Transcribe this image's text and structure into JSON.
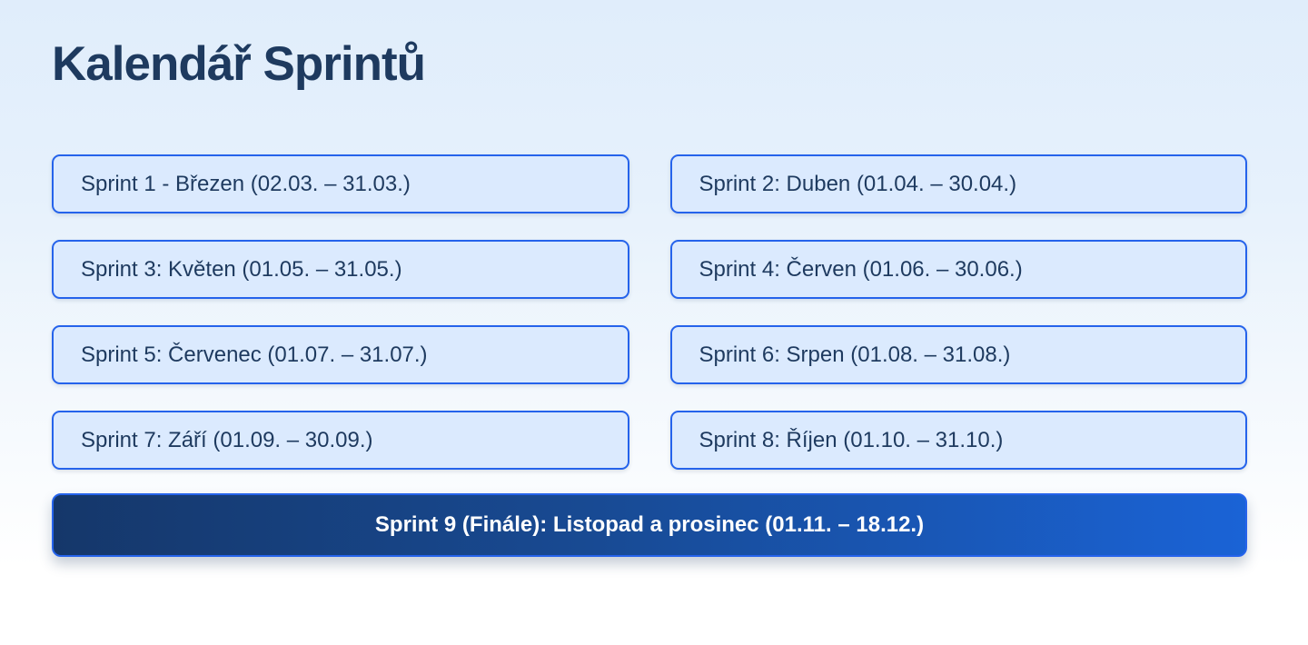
{
  "page": {
    "title": "Kalendář Sprintů"
  },
  "sprints": [
    {
      "label": "Sprint 1 - Březen (02.03. – 31.03.)"
    },
    {
      "label": "Sprint 2: Duben (01.04. – 30.04.)"
    },
    {
      "label": "Sprint 3: Květen (01.05. – 31.05.)"
    },
    {
      "label": "Sprint 4: Červen (01.06. – 30.06.)"
    },
    {
      "label": "Sprint 5: Červenec (01.07. – 31.07.)"
    },
    {
      "label": "Sprint 6: Srpen (01.08. – 31.08.)"
    },
    {
      "label": "Sprint 7: Září (01.09. – 30.09.)"
    },
    {
      "label": "Sprint 8: Říjen (01.10. – 31.10.)"
    }
  ],
  "final_sprint": {
    "label": "Sprint 9 (Finále): Listopad a prosinec (01.11. – 18.12.)"
  },
  "colors": {
    "page_background_top": "#e0edfb",
    "page_background_bottom": "#ffffff",
    "title_text": "#1e3a5f",
    "card_background": "#dbeafe",
    "card_border": "#2563eb",
    "card_text": "#1e3a5f",
    "final_gradient_left": "#15376a",
    "final_gradient_right": "#1a63d6",
    "final_text": "#ffffff"
  }
}
